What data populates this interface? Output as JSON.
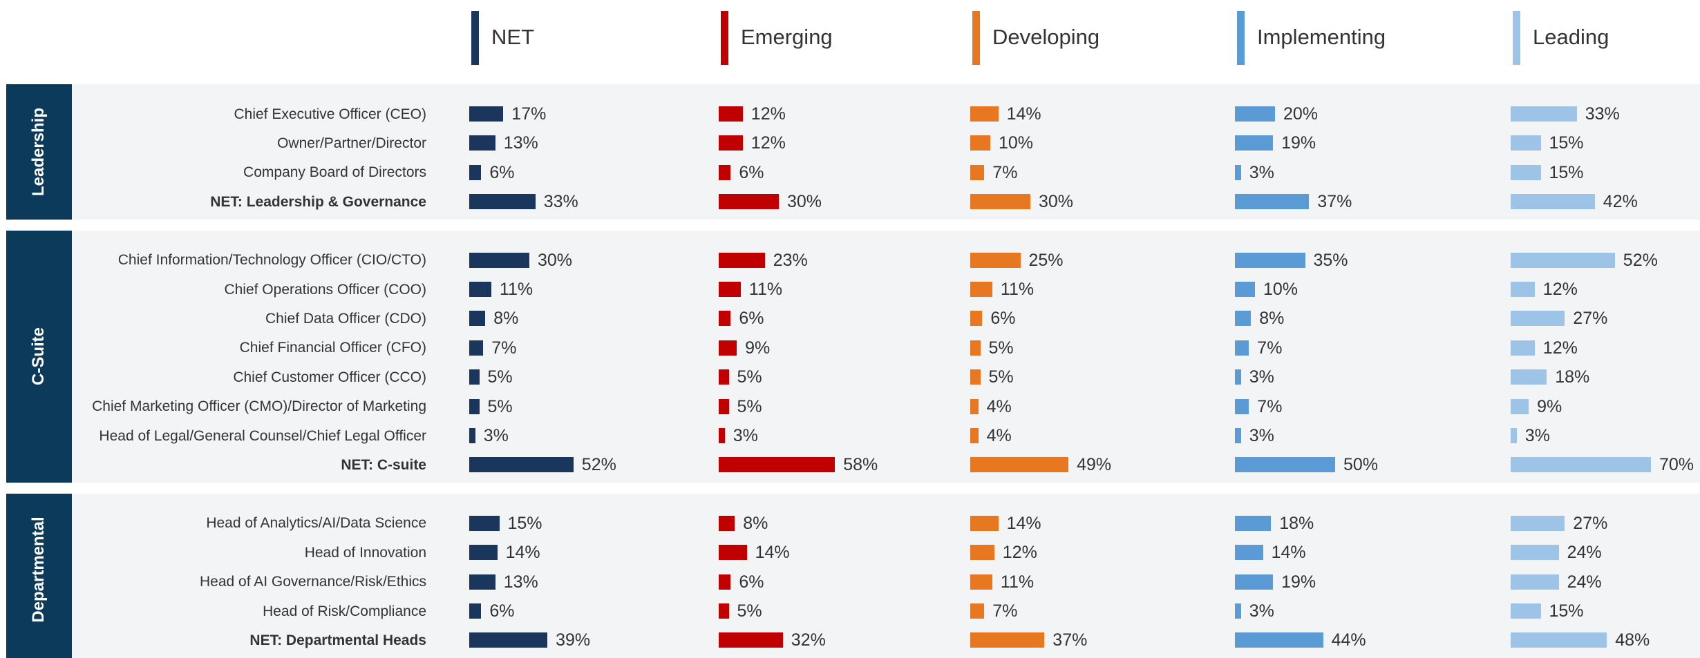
{
  "chart_data": {
    "type": "bar",
    "groups": [
      {
        "name": "Leadership",
        "categories": [
          "Chief Executive Officer (CEO)",
          "Owner/Partner/Director",
          "Company Board of Directors",
          "NET: Leadership & Governance"
        ]
      },
      {
        "name": "C-Suite",
        "categories": [
          "Chief Information/Technology Officer (CIO/CTO)",
          "Chief Operations Officer (COO)",
          "Chief Data Officer (CDO)",
          "Chief Financial Officer (CFO)",
          "Chief Customer Officer (CCO)",
          "Chief Marketing Officer (CMO)/Director of Marketing",
          "Head of Legal/General Counsel/Chief Legal Officer",
          "NET: C-suite"
        ]
      },
      {
        "name": "Departmental",
        "categories": [
          "Head of Analytics/AI/Data Science",
          "Head of Innovation",
          "Head of AI Governance/Risk/Ethics",
          "Head of Risk/Compliance",
          "NET: Departmental Heads"
        ]
      }
    ],
    "series": [
      {
        "name": "NET",
        "color": "#1b365d",
        "values": [
          17,
          13,
          6,
          33,
          30,
          11,
          8,
          7,
          5,
          5,
          3,
          52,
          15,
          14,
          13,
          6,
          39
        ],
        "value_labels": [
          "17%",
          "13%",
          "6%",
          "33%",
          "30%",
          "11%",
          "8%",
          "7%",
          "5%",
          "5%",
          "3%",
          "52%",
          "15%",
          "14%",
          "13%",
          "6%",
          "39%"
        ]
      },
      {
        "name": "Emerging",
        "color": "#c00000",
        "values": [
          12,
          12,
          6,
          30,
          23,
          11,
          6,
          9,
          5,
          5,
          3,
          58,
          8,
          14,
          6,
          5,
          32
        ],
        "value_labels": [
          "12%",
          "12%",
          "6%",
          "30%",
          "23%",
          "11%",
          "6%",
          "9%",
          "5%",
          "5%",
          "3%",
          "58%",
          "8%",
          "14%",
          "6%",
          "5%",
          "32%"
        ]
      },
      {
        "name": "Developing",
        "color": "#e87722",
        "values": [
          14,
          10,
          7,
          30,
          25,
          11,
          6,
          5,
          5,
          4,
          4,
          49,
          14,
          12,
          11,
          7,
          37
        ],
        "value_labels": [
          "14%",
          "10%",
          "7%",
          "30%",
          "25%",
          "11%",
          "6%",
          "5%",
          "5%",
          "4%",
          "4%",
          "49%",
          "14%",
          "12%",
          "11%",
          "7%",
          "37%"
        ]
      },
      {
        "name": "Implementing",
        "color": "#5b9bd5",
        "values": [
          20,
          19,
          3,
          37,
          35,
          10,
          8,
          7,
          3,
          7,
          3,
          50,
          18,
          14,
          19,
          3,
          44
        ],
        "value_labels": [
          "20%",
          "19%",
          "3%",
          "37%",
          "35%",
          "10%",
          "8%",
          "7%",
          "3%",
          "7%",
          "3%",
          "50%",
          "18%",
          "14%",
          "19%",
          "3%",
          "44%"
        ]
      },
      {
        "name": "Leading",
        "color": "#9dc3e6",
        "values": [
          33,
          15,
          15,
          42,
          52,
          12,
          27,
          12,
          18,
          9,
          3,
          70,
          27,
          24,
          24,
          15,
          48
        ],
        "value_labels": [
          "33%",
          "15%",
          "15%",
          "42%",
          "52%",
          "12%",
          "27%",
          "12%",
          "18%",
          "9%",
          "3%",
          "70%",
          "27%",
          "24%",
          "24%",
          "15%",
          "48%"
        ]
      }
    ]
  }
}
